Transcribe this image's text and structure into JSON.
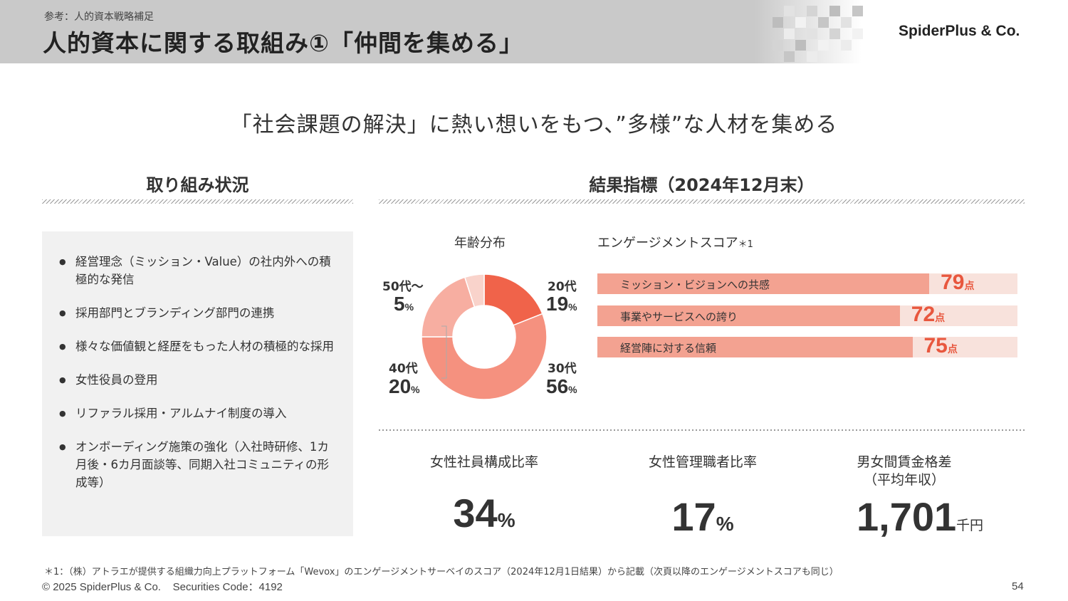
{
  "header": {
    "subtitle": "参考：人的資本戦略補足",
    "title": "人的資本に関する取組み①「仲間を集める」",
    "logo": "SpiderPlus & Co."
  },
  "tagline": "「社会課題の解決」に熱い想いをもつ、”多様”な人材を集める",
  "left_section": {
    "title": "取り組み状況",
    "items": [
      "経営理念（ミッション・Value）の社内外への積極的な発信",
      "採用部門とブランディング部門の連携",
      "様々な価値観と経歴をもった人材の積極的な採用",
      "女性役員の登用",
      "リファラル採用・アルムナイ制度の導入",
      "オンボーディング施策の強化（入社時研修、1カ月後・6カ月面談等、同期入社コミュニティの形成等）"
    ]
  },
  "right_section": {
    "title": "結果指標（2024年12月末）"
  },
  "chart_data": [
    {
      "type": "pie",
      "title": "年齢分布",
      "categories": [
        "20代",
        "30代",
        "40代",
        "50代～"
      ],
      "values": [
        19,
        56,
        20,
        5
      ],
      "unit": "%",
      "colors": [
        "#f0634a",
        "#f5917f",
        "#f7aea1",
        "#f9d3cb"
      ]
    },
    {
      "type": "bar",
      "title": "エンゲージメントスコア",
      "title_mark": "＊1",
      "categories": [
        "ミッション・ビジョンへの共感",
        "事業やサービスへの誇り",
        "経営陣に対する信頼"
      ],
      "values": [
        79,
        72,
        75
      ],
      "unit": "点"
    }
  ],
  "pie_labels": {
    "a20": {
      "label": "20代",
      "value": "19"
    },
    "a30": {
      "label": "30代",
      "value": "56"
    },
    "a40": {
      "label": "40代",
      "value": "20"
    },
    "a50": {
      "label": "50代～",
      "value": "5"
    },
    "pct": "%"
  },
  "bars": [
    {
      "label": "ミッション・ビジョンへの共感",
      "score": "79",
      "unit": "点"
    },
    {
      "label": "事業やサービスへの誇り",
      "score": "72",
      "unit": "点"
    },
    {
      "label": "経営陣に対する信頼",
      "score": "75",
      "unit": "点"
    }
  ],
  "kpis": [
    {
      "label": "女性社員構成比率",
      "value": "34",
      "unit": "%"
    },
    {
      "label": "女性管理職者比率",
      "value": "17",
      "unit": "%"
    },
    {
      "label": "男女間賃金格差",
      "sublabel": "（平均年収）",
      "value": "1,701",
      "unit": "千円"
    }
  ],
  "footer": {
    "note": "＊1：（株）アトラエが提供する組織力向上プラットフォーム「Wevox」のエンゲージメントサーベイのスコア（2024年12月1日結果）から記載（次頁以降のエンゲージメントスコアも同じ）",
    "copyright": "© 2025 SpiderPlus & Co.    Securities Code：4192",
    "page": "54"
  },
  "colors": {
    "accent": "#e8573e",
    "bar_fill": "#f3a291",
    "bar_track": "#f8e2dc",
    "header_band": "#c9c9c9"
  }
}
